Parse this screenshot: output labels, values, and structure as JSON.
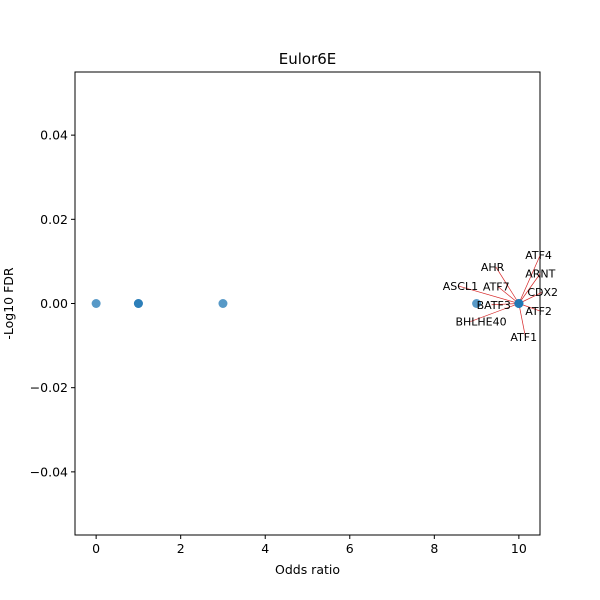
{
  "chart_data": {
    "type": "scatter",
    "title": "Eulor6E",
    "xlabel": "Odds ratio",
    "ylabel": "-Log10 FDR",
    "xlim": [
      -0.5,
      10.5
    ],
    "ylim": [
      -0.055,
      0.055
    ],
    "xticks": [
      0,
      2,
      4,
      6,
      8,
      10
    ],
    "yticks": [
      -0.04,
      -0.02,
      0.0,
      0.02,
      0.04
    ],
    "xtick_labels": [
      "0",
      "2",
      "4",
      "6",
      "8",
      "10"
    ],
    "ytick_labels": [
      "−0.04",
      "−0.02",
      "0.00",
      "0.02",
      "0.04"
    ],
    "grid": false,
    "point_color": "#1f77b4",
    "annotation_line_color": "#d62728",
    "points": [
      {
        "x": 0,
        "y": 0
      },
      {
        "x": 1,
        "y": 0
      },
      {
        "x": 1,
        "y": 0
      },
      {
        "x": 3,
        "y": 0
      },
      {
        "x": 9,
        "y": 0
      },
      {
        "x": 10,
        "y": 0
      },
      {
        "x": 10,
        "y": 0
      },
      {
        "x": 10,
        "y": 0
      }
    ],
    "annotations": [
      {
        "text": "ATF4",
        "x": 10,
        "y": 0,
        "tx": 10.15,
        "ty": 0.0115
      },
      {
        "text": "AHR",
        "x": 10,
        "y": 0,
        "tx": 9.1,
        "ty": 0.0087
      },
      {
        "text": "ARNT",
        "x": 10,
        "y": 0,
        "tx": 10.15,
        "ty": 0.0071
      },
      {
        "text": "ASCL1",
        "x": 10,
        "y": 0,
        "tx": 8.2,
        "ty": 0.0042
      },
      {
        "text": "ATF7",
        "x": 10,
        "y": 0,
        "tx": 9.15,
        "ty": 0.004
      },
      {
        "text": "CDX2",
        "x": 10,
        "y": 0,
        "tx": 10.2,
        "ty": 0.0027
      },
      {
        "text": "BATF3",
        "x": 10,
        "y": 0,
        "tx": 9.0,
        "ty": -0.0003
      },
      {
        "text": "ATF2",
        "x": 10,
        "y": 0,
        "tx": 10.15,
        "ty": -0.0018
      },
      {
        "text": "BHLHE40",
        "x": 10,
        "y": 0,
        "tx": 8.5,
        "ty": -0.0043
      },
      {
        "text": "ATF1",
        "x": 10,
        "y": 0,
        "tx": 9.8,
        "ty": -0.0079
      }
    ]
  }
}
